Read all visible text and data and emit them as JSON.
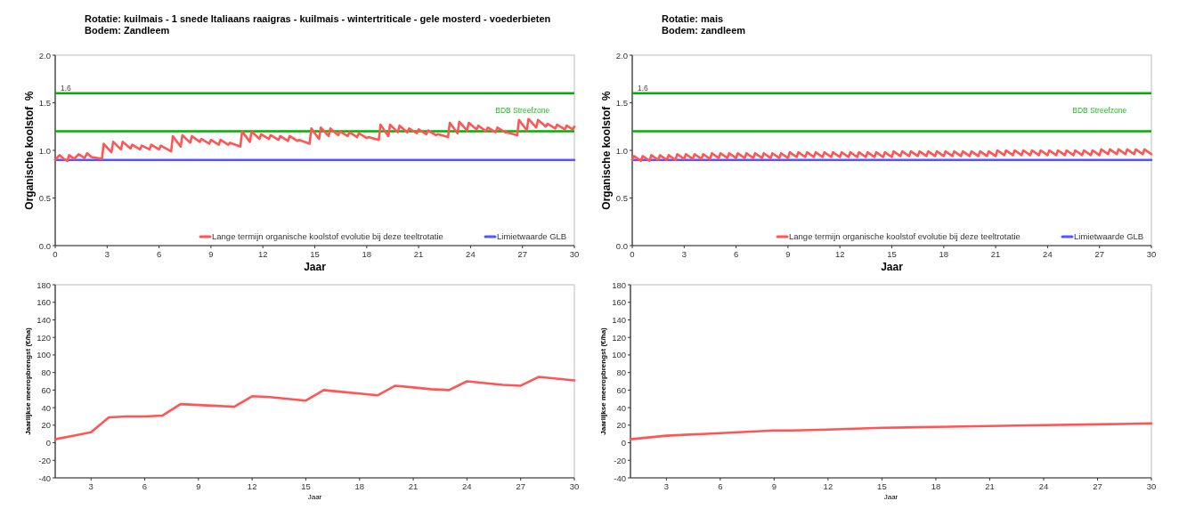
{
  "chart_data": [
    {
      "type": "line",
      "title": "Rotatie: kuilmais - 1 snede Italiaans raaigras - kuilmais - wintertriticale - gele mosterd - voederbieten",
      "subtitle": "Bodem: Zandleem",
      "xlabel": "Jaar",
      "ylabel": "Organische koolstof  %",
      "xlim": [
        0,
        30
      ],
      "xticks": [
        0,
        3,
        6,
        9,
        12,
        15,
        18,
        21,
        24,
        27,
        30
      ],
      "ylim": [
        0,
        2
      ],
      "yticks": [
        {
          "value": 0,
          "label": "0.0"
        },
        {
          "value": 0.5,
          "label": "0.5"
        },
        {
          "value": 1,
          "label": "1.0"
        },
        {
          "value": 1.5,
          "label": "1.5"
        },
        {
          "value": 2,
          "label": "2.0"
        }
      ],
      "legend": "bottom right",
      "ref_lines": [
        {
          "axis": "y",
          "value": 1.6,
          "label": "1.6",
          "color": "#00b000"
        },
        {
          "axis": "y",
          "value": 1.2,
          "label": null,
          "color": "#00b000"
        }
      ],
      "annotations": [
        "BDB Streefzone"
      ],
      "series": [
        {
          "name": "Lange termijn organische koolstof evolutie bij deze teeltrotatie",
          "color": "#ff5555",
          "x": [
            0,
            0.25,
            0.5,
            0.7,
            0.8,
            1.1,
            1.35,
            1.7,
            1.85,
            2.1,
            2.7,
            2.8,
            3.25,
            3.35,
            3.8,
            3.9,
            4.35,
            4.45,
            4.9,
            5.0,
            5.45,
            5.55,
            6.0,
            6.1,
            6.7,
            6.8,
            7.25,
            7.35,
            7.8,
            7.9,
            8.35,
            8.45,
            8.9,
            9.0,
            9.45,
            9.55,
            10.0,
            10.1,
            10.7,
            10.8,
            11.25,
            11.35,
            11.8,
            11.9,
            12.35,
            12.45,
            12.9,
            13.0,
            13.45,
            13.55,
            14.0,
            14.1,
            14.7,
            14.8,
            15.25,
            15.35,
            15.8,
            15.9,
            16.35,
            16.45,
            16.9,
            17.0,
            17.45,
            17.55,
            18.0,
            18.1,
            18.7,
            18.8,
            19.25,
            19.35,
            19.8,
            19.9,
            20.35,
            20.45,
            20.9,
            21.0,
            21.45,
            21.55,
            22.0,
            22.1,
            22.7,
            22.8,
            23.25,
            23.35,
            23.8,
            23.9,
            24.35,
            24.45,
            24.9,
            25.0,
            25.45,
            25.55,
            26.0,
            26.1,
            26.7,
            26.8,
            27.25,
            27.35,
            27.8,
            27.9,
            28.35,
            28.45,
            28.9,
            29.0,
            29.45,
            29.55,
            29.9,
            30
          ],
          "values": [
            0.9,
            0.95,
            0.91,
            0.89,
            0.95,
            0.91,
            0.96,
            0.92,
            0.97,
            0.93,
            0.91,
            1.07,
            0.98,
            1.09,
            1.01,
            1.09,
            1.02,
            1.06,
            1.01,
            1.05,
            1.01,
            1.06,
            1.01,
            1.05,
            0.99,
            1.15,
            1.04,
            1.16,
            1.08,
            1.15,
            1.09,
            1.12,
            1.07,
            1.11,
            1.06,
            1.11,
            1.06,
            1.08,
            1.04,
            1.2,
            1.09,
            1.2,
            1.12,
            1.17,
            1.12,
            1.16,
            1.11,
            1.15,
            1.1,
            1.15,
            1.1,
            1.11,
            1.07,
            1.23,
            1.12,
            1.24,
            1.15,
            1.23,
            1.16,
            1.2,
            1.15,
            1.19,
            1.14,
            1.18,
            1.13,
            1.14,
            1.11,
            1.27,
            1.15,
            1.27,
            1.19,
            1.26,
            1.19,
            1.23,
            1.18,
            1.22,
            1.17,
            1.21,
            1.16,
            1.17,
            1.14,
            1.29,
            1.18,
            1.3,
            1.21,
            1.29,
            1.22,
            1.26,
            1.2,
            1.24,
            1.19,
            1.24,
            1.19,
            1.19,
            1.16,
            1.32,
            1.21,
            1.33,
            1.24,
            1.32,
            1.25,
            1.28,
            1.23,
            1.27,
            1.22,
            1.26,
            1.22,
            1.25
          ]
        },
        {
          "name": "Limietwaarde GLB",
          "color": "#5555ff",
          "x": [
            0,
            30
          ],
          "values": [
            0.9,
            0.9
          ]
        }
      ]
    },
    {
      "type": "line",
      "title": "Rotatie: mais",
      "subtitle": "Bodem: zandleem",
      "xlabel": "Jaar",
      "ylabel": "Organische koolstof  %",
      "xlim": [
        0,
        30
      ],
      "xticks": [
        0,
        3,
        6,
        9,
        12,
        15,
        18,
        21,
        24,
        27,
        30
      ],
      "ylim": [
        0,
        2
      ],
      "yticks": [
        {
          "value": 0,
          "label": "0.0"
        },
        {
          "value": 0.5,
          "label": "0.5"
        },
        {
          "value": 1,
          "label": "1.0"
        },
        {
          "value": 1.5,
          "label": "1.5"
        },
        {
          "value": 2,
          "label": "2.0"
        }
      ],
      "legend": "bottom right",
      "ref_lines": [
        {
          "axis": "y",
          "value": 1.6,
          "label": "1.6",
          "color": "#00b000"
        },
        {
          "axis": "y",
          "value": 1.2,
          "label": null,
          "color": "#00b000"
        }
      ],
      "annotations": [
        "BDB Streefzone"
      ],
      "series": [
        {
          "name": "Lange termijn organische koolstof evolutie bij deze teeltrotatie",
          "color": "#ff5555",
          "x": [
            0,
            0.1,
            0.5,
            0.6,
            1,
            1.1,
            1.5,
            1.6,
            2,
            2.1,
            2.5,
            2.6,
            3,
            3.1,
            3.5,
            3.6,
            4,
            4.1,
            4.5,
            4.6,
            5,
            5.1,
            5.5,
            5.6,
            6,
            6.1,
            6.5,
            6.6,
            7,
            7.1,
            7.5,
            7.6,
            8,
            8.1,
            8.5,
            8.6,
            9,
            9.1,
            9.5,
            9.6,
            10,
            10.1,
            10.5,
            10.6,
            11,
            11.1,
            11.5,
            11.6,
            12,
            12.1,
            12.5,
            12.6,
            13,
            13.1,
            13.5,
            13.6,
            14,
            14.1,
            14.5,
            14.6,
            15,
            15.1,
            15.5,
            15.6,
            16,
            16.1,
            16.5,
            16.6,
            17,
            17.1,
            17.5,
            17.6,
            18,
            18.1,
            18.5,
            18.6,
            19,
            19.1,
            19.5,
            19.6,
            20,
            20.1,
            20.5,
            20.6,
            21,
            21.1,
            21.5,
            21.6,
            22,
            22.1,
            22.5,
            22.6,
            23,
            23.1,
            23.5,
            23.6,
            24,
            24.1,
            24.5,
            24.6,
            25,
            25.1,
            25.5,
            25.6,
            26,
            26.1,
            26.5,
            26.6,
            27,
            27.1,
            27.5,
            27.6,
            28,
            28.1,
            28.5,
            28.6,
            29,
            29.1,
            29.5,
            29.6,
            30
          ],
          "values": [
            0.9,
            0.94,
            0.89,
            0.94,
            0.89,
            0.95,
            0.9,
            0.95,
            0.9,
            0.95,
            0.9,
            0.96,
            0.91,
            0.96,
            0.91,
            0.96,
            0.91,
            0.96,
            0.91,
            0.97,
            0.92,
            0.97,
            0.92,
            0.97,
            0.92,
            0.97,
            0.92,
            0.97,
            0.92,
            0.97,
            0.92,
            0.97,
            0.92,
            0.97,
            0.92,
            0.97,
            0.92,
            0.98,
            0.93,
            0.98,
            0.93,
            0.98,
            0.93,
            0.98,
            0.93,
            0.98,
            0.93,
            0.98,
            0.93,
            0.98,
            0.93,
            0.98,
            0.93,
            0.98,
            0.93,
            0.98,
            0.93,
            0.98,
            0.93,
            0.98,
            0.93,
            0.99,
            0.94,
            0.99,
            0.94,
            0.99,
            0.94,
            0.99,
            0.94,
            0.99,
            0.94,
            0.99,
            0.94,
            0.99,
            0.94,
            0.99,
            0.94,
            0.99,
            0.94,
            0.99,
            0.94,
            0.99,
            0.94,
            0.99,
            0.94,
            1.0,
            0.95,
            1.0,
            0.95,
            1.0,
            0.95,
            1.0,
            0.95,
            1.0,
            0.95,
            1.0,
            0.95,
            1.0,
            0.95,
            1.0,
            0.95,
            1.0,
            0.95,
            1.0,
            0.95,
            1.0,
            0.95,
            1.0,
            0.95,
            1.01,
            0.96,
            1.01,
            0.96,
            1.01,
            0.96,
            1.01,
            0.96,
            1.01,
            0.96,
            1.01,
            0.96
          ]
        },
        {
          "name": "Limietwaarde GLB",
          "color": "#5555ff",
          "x": [
            0,
            30
          ],
          "values": [
            0.9,
            0.9
          ]
        }
      ]
    },
    {
      "type": "line",
      "xlabel": "Jaar",
      "ylabel": "Jaarlijkse meeropbrengst (€/ha)",
      "xlim": [
        1,
        30
      ],
      "xticks": [
        3,
        6,
        9,
        12,
        15,
        18,
        21,
        24,
        27,
        30
      ],
      "ylim": [
        -40,
        180
      ],
      "yticks": [
        -40,
        -20,
        0,
        20,
        40,
        60,
        80,
        100,
        120,
        140,
        160,
        180
      ],
      "series": [
        {
          "color": "#ff5555",
          "x": [
            1,
            2,
            3,
            4,
            5,
            6,
            7,
            8,
            9,
            10,
            11,
            12,
            13,
            14,
            15,
            16,
            17,
            18,
            19,
            20,
            21,
            22,
            23,
            24,
            25,
            26,
            27,
            28,
            29,
            30
          ],
          "values": [
            4,
            8,
            12,
            29,
            30,
            30,
            31,
            44,
            43,
            42,
            41,
            53,
            52,
            50,
            48,
            60,
            58,
            56,
            54,
            65,
            63,
            61,
            60,
            70,
            68,
            66,
            65,
            75,
            73,
            71
          ]
        }
      ]
    },
    {
      "type": "line",
      "xlabel": "Jaar",
      "ylabel": "Jaarlijkse meeropbrengst (€/ha)",
      "xlim": [
        1,
        30
      ],
      "xticks": [
        3,
        6,
        9,
        12,
        15,
        18,
        21,
        24,
        27,
        30
      ],
      "ylim": [
        -40,
        180
      ],
      "yticks": [
        -40,
        -20,
        0,
        20,
        40,
        60,
        80,
        100,
        120,
        140,
        160,
        180
      ],
      "series": [
        {
          "color": "#ff5555",
          "x": [
            1,
            2,
            3,
            4,
            5,
            6,
            7,
            8,
            9,
            10,
            12,
            15,
            18,
            21,
            24,
            27,
            30
          ],
          "values": [
            4,
            6,
            8,
            9,
            10,
            11,
            12,
            13,
            14,
            14,
            15,
            17,
            18,
            19,
            20,
            21,
            22
          ]
        }
      ]
    }
  ]
}
